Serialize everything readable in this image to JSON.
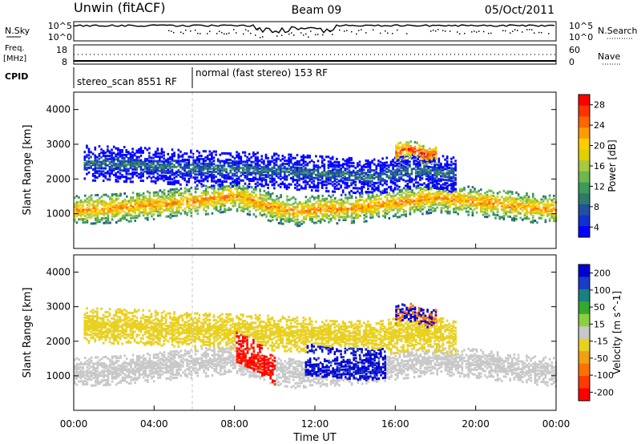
{
  "header": {
    "station": "Unwin (fitACF)",
    "beam": "Beam 09",
    "date": "05/Oct/2011"
  },
  "strip_labels": {
    "nsky": "N.Sky",
    "nsky_ticks": [
      "10^5",
      "10^0"
    ],
    "nsky_ticks_right": [
      "10^5",
      "10^0"
    ],
    "nsearch": "N.Search",
    "freq": "Freq.",
    "freq_unit": "[MHz]",
    "freq_ticks": [
      "18",
      "8"
    ],
    "nave": "Nave",
    "nave_ticks": [
      "60",
      "0"
    ],
    "cpid": "CPID"
  },
  "cpid_segments": [
    {
      "label": "stereo_scan 8551 RF"
    },
    {
      "label": "normal (fast stereo) 153 RF"
    }
  ],
  "power_colorbar": {
    "title": "Power [dB]",
    "ticks": [
      "28",
      "24",
      "20",
      "16",
      "12",
      "8",
      "4"
    ],
    "colors": [
      "#ff0000",
      "#ff3300",
      "#ff6600",
      "#ff9900",
      "#ffcc00",
      "#e0d000",
      "#a8c840",
      "#6cb84c",
      "#3c9a5a",
      "#2e7a6a",
      "#2050a0",
      "#1030d0",
      "#0000ff"
    ]
  },
  "velocity_colorbar": {
    "title": "Velocity [m s^-1]",
    "ticks": [
      "200",
      "100",
      "50",
      "15",
      "-15",
      "-50",
      "-100",
      "-200"
    ],
    "colors": [
      "#0000d0",
      "#1a3cc8",
      "#1a8080",
      "#36a830",
      "#8ad040",
      "#c8c8c8",
      "#e8d020",
      "#f0a010",
      "#ff7000",
      "#ff3c00",
      "#ff0000"
    ]
  },
  "chart_data": [
    {
      "type": "heatmap",
      "name": "Power",
      "ylabel": "Slant Range [km]",
      "ylim": [
        0,
        4500
      ],
      "y_ticks": [
        "1000",
        "2000",
        "3000",
        "4000"
      ],
      "xlim": [
        "00:00",
        "24:00"
      ],
      "scatter_bands": [
        {
          "t": [
            0,
            2,
            4,
            6,
            8,
            10,
            11,
            12,
            14,
            16,
            18,
            20,
            22,
            24
          ],
          "range_km": [
            1150,
            1200,
            1300,
            1400,
            1550,
            1200,
            1100,
            1150,
            1200,
            1350,
            1500,
            1400,
            1250,
            1150
          ],
          "power_db": 22
        },
        {
          "t": [
            0.5,
            3,
            6,
            9,
            12,
            15,
            17,
            19
          ],
          "range_km": [
            2500,
            2450,
            2350,
            2300,
            2200,
            2100,
            2300,
            2150
          ],
          "power_db": 8
        },
        {
          "t": [
            16,
            16.5,
            17,
            17.5,
            18
          ],
          "range_km": [
            2800,
            2900,
            2850,
            2700,
            2750
          ],
          "power_db": 26
        }
      ]
    },
    {
      "type": "heatmap",
      "name": "Velocity",
      "ylabel": "Slant Range [km]",
      "xlabel": "Time UT",
      "ylim": [
        0,
        4500
      ],
      "y_ticks": [
        "1000",
        "2000",
        "3000",
        "4000"
      ],
      "x_ticks": [
        "00:00",
        "04:00",
        "08:00",
        "12:00",
        "16:00",
        "20:00",
        "00:00"
      ],
      "xlim": [
        "00:00",
        "24:00"
      ],
      "scatter_bands": [
        {
          "t": [
            0,
            2,
            4,
            6,
            8,
            10,
            11,
            12,
            14,
            16,
            18,
            20,
            22,
            24
          ],
          "range_km": [
            1150,
            1200,
            1300,
            1400,
            1550,
            1200,
            1100,
            1150,
            1200,
            1350,
            1500,
            1400,
            1250,
            1150
          ],
          "velocity": 0
        },
        {
          "t": [
            11.5,
            12.5,
            13.5,
            14.5,
            15.5
          ],
          "range_km": [
            1500,
            1450,
            1400,
            1350,
            1400
          ],
          "velocity": 200
        },
        {
          "t": [
            8,
            9,
            10
          ],
          "range_km": [
            1900,
            1600,
            1200
          ],
          "velocity": -200
        }
      ]
    }
  ]
}
